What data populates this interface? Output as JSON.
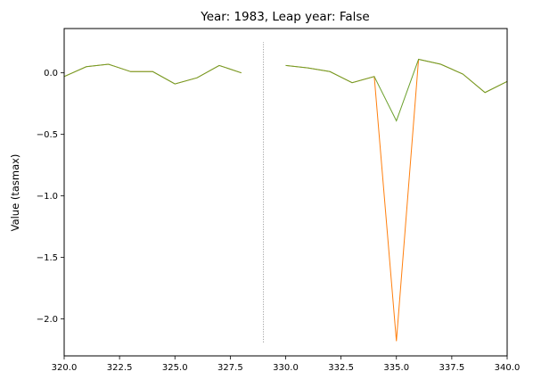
{
  "chart_data": {
    "type": "line",
    "title": "Year: 1983, Leap year: False",
    "xlabel": "",
    "ylabel": "Value (tasmax)",
    "xlim": [
      320,
      340
    ],
    "ylim": [
      -2.3,
      0.36
    ],
    "x_ticks": [
      "320.0",
      "322.5",
      "325.0",
      "327.5",
      "330.0",
      "332.5",
      "335.0",
      "337.5",
      "340.0"
    ],
    "y_ticks": [
      "0.0",
      "−0.5",
      "−1.0",
      "−1.5",
      "−2.0"
    ],
    "grid": false,
    "legend": "none",
    "series": [
      {
        "color": "#ff7f0e",
        "x": [
          320,
          321,
          322,
          323,
          324,
          325,
          326,
          327,
          328,
          null,
          330,
          331,
          332,
          333,
          334,
          335,
          336,
          337,
          338,
          339,
          340
        ],
        "y": [
          -0.03,
          0.05,
          0.07,
          0.01,
          0.01,
          -0.09,
          -0.04,
          0.06,
          0.0,
          null,
          0.06,
          0.04,
          0.01,
          -0.08,
          -0.03,
          -2.18,
          0.11,
          0.07,
          -0.01,
          -0.16,
          -0.07
        ]
      },
      {
        "color": "#6a9f2a",
        "x": [
          320,
          321,
          322,
          323,
          324,
          325,
          326,
          327,
          328,
          null,
          330,
          331,
          332,
          333,
          334,
          335,
          336,
          337,
          338,
          339,
          340
        ],
        "y": [
          -0.03,
          0.05,
          0.07,
          0.01,
          0.01,
          -0.09,
          -0.04,
          0.06,
          0.0,
          null,
          0.06,
          0.04,
          0.01,
          -0.08,
          -0.03,
          -0.39,
          0.11,
          0.07,
          -0.01,
          -0.16,
          -0.07
        ]
      }
    ],
    "vline": {
      "x": 329,
      "y_from": -2.19,
      "y_to": 0.25,
      "color": "#888888",
      "style": "dotted"
    }
  }
}
